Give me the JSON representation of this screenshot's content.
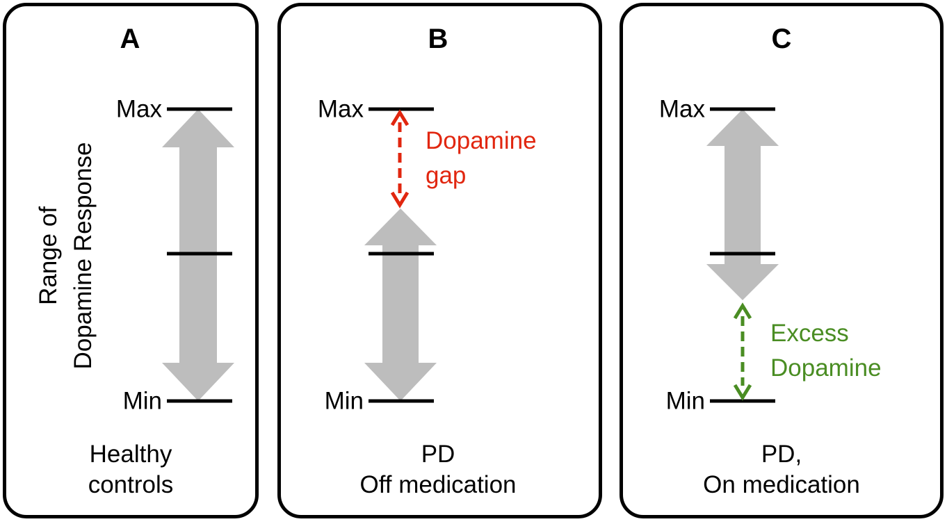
{
  "axis_label": {
    "line1": "Range of",
    "line2": "Dopamine Response"
  },
  "colors": {
    "arrow": "#bdbdbd",
    "gap": "#e1260f",
    "excess": "#4a8d23",
    "line": "#000000"
  },
  "panels": [
    {
      "letter": "A",
      "max_label": "Max",
      "mid_label": "",
      "min_label": "Min",
      "caption": [
        "Healthy",
        "controls"
      ]
    },
    {
      "letter": "B",
      "max_label": "Max",
      "min_label": "Min",
      "caption": [
        "PD",
        "Off medication"
      ],
      "annotation": [
        "Dopamine",
        "gap"
      ]
    },
    {
      "letter": "C",
      "max_label": "Max",
      "min_label": "Min",
      "caption": [
        "PD,",
        "On medication"
      ],
      "annotation": [
        "Excess",
        "Dopamine"
      ]
    }
  ]
}
